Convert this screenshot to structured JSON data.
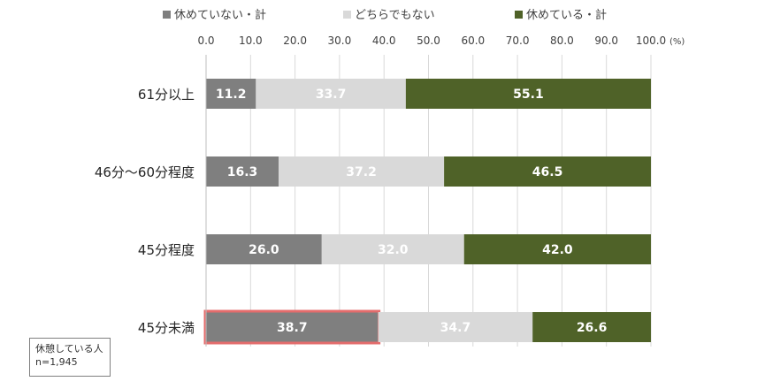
{
  "chart_data": {
    "type": "bar",
    "orientation": "horizontal",
    "stacked": true,
    "categories": [
      "61分以上",
      "46分～60分程度",
      "45分程度",
      "45分未満"
    ],
    "series": [
      {
        "name": "休めていない・計",
        "color": "#7f7f7f",
        "values": [
          11.2,
          16.3,
          26.0,
          38.7
        ]
      },
      {
        "name": "どちらでもない",
        "color": "#d9d9d9",
        "values": [
          33.7,
          37.2,
          32.0,
          34.7
        ]
      },
      {
        "name": "休めている・計",
        "color": "#4f6228",
        "values": [
          55.1,
          46.5,
          42.0,
          26.6
        ]
      }
    ],
    "xlim": [
      0,
      100
    ],
    "xticks": [
      "0.0",
      "10.0",
      "20.0",
      "30.0",
      "40.0",
      "50.0",
      "60.0",
      "70.0",
      "80.0",
      "90.0",
      "100.0"
    ],
    "x_unit": "(%)",
    "x_axis_position": "top",
    "legend_position": "top",
    "grid": "vertical",
    "highlight": {
      "category": "45分未満",
      "series": "休めていない・計",
      "color": "#e46c6c"
    },
    "note": {
      "line1": "休憩している人",
      "line2": "n=1,945"
    }
  }
}
